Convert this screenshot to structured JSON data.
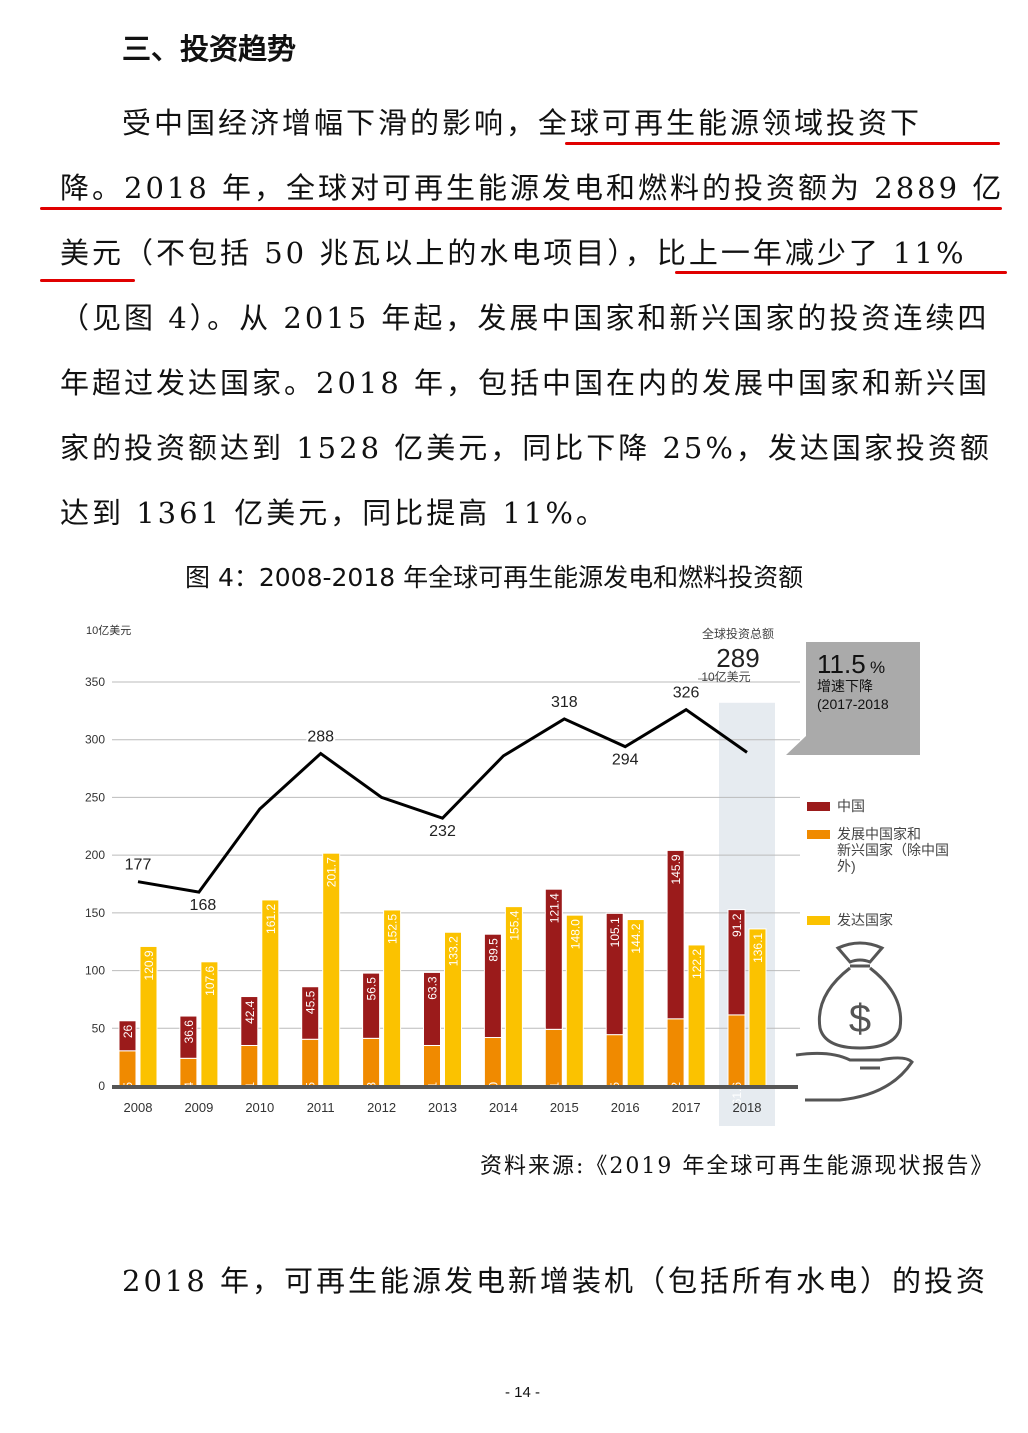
{
  "heading": "三、投资趋势",
  "paragraph1": [
    "受中国经济增幅下滑的影响，全球可再生能源领域投资下",
    "降。2018 年，全球对可再生能源发电和燃料的投资额为 2889 亿",
    "美元（不包括 50 兆瓦以上的水电项目），比上一年减少了 11%",
    "（见图 4）。从 2015 年起，发展中国家和新兴国家的投资连续四",
    "年超过发达国家。2018 年，包括中国在内的发展中国家和新兴国",
    "家的投资额达到 1528 亿美元，同比下降 25%，发达国家投资额",
    "达到 1361 亿美元，同比提高 11%。"
  ],
  "underline_color": "#e00000",
  "figure_caption": "图 4：2008-2018 年全球可再生能源发电和燃料投资额",
  "source": "资料来源:《2019 年全球可再生能源现状报告》",
  "paragraph2_start": "2018 年，可再生能源发电新增装机（包括所有水电）的投资",
  "page_number": "- 14 -",
  "chart_data": {
    "type": "bar",
    "ylabel": "10亿美元",
    "ylim": [
      0,
      350
    ],
    "yticks": [
      0,
      50,
      100,
      150,
      200,
      250,
      300,
      350
    ],
    "grid": true,
    "categories": [
      "2008",
      "2009",
      "2010",
      "2011",
      "2012",
      "2013",
      "2014",
      "2015",
      "2016",
      "2017",
      "2018"
    ],
    "series": [
      {
        "name": "中国",
        "color": "#9b1b1b",
        "stack": "a",
        "values": [
          26,
          36.6,
          42.4,
          45.5,
          56.5,
          63.3,
          89.5,
          121.4,
          105.1,
          145.9,
          91.2
        ],
        "labels": [
          "26",
          "36.6",
          "42.4",
          "45.5",
          "56.5",
          "63.3",
          "89.5",
          "121.4",
          "105.1",
          "145.9",
          "91.2"
        ]
      },
      {
        "name": "发展中国家和新兴国家（除中国外）",
        "color": "#f08a00",
        "stack": "a",
        "values": [
          30.5,
          24,
          35.1,
          40.5,
          41.3,
          35.1,
          42.0,
          49.1,
          44.5,
          58.2,
          61.6
        ],
        "labels": [
          "30.5",
          "24",
          "35.1",
          "40.5",
          "41.3",
          "35.1",
          "42.0",
          "49.1",
          "44.5",
          "58.2",
          "61.6"
        ]
      },
      {
        "name": "发达国家",
        "color": "#fbc200",
        "stack": "b",
        "values": [
          120.9,
          107.6,
          161.2,
          201.7,
          152.5,
          133.2,
          155.4,
          148.0,
          144.2,
          122.2,
          136.1
        ],
        "labels": [
          "120.9",
          "107.6",
          "161.2",
          "201.7",
          "152.5",
          "133.2",
          "155.4",
          "148.0",
          "144.2",
          "122.2",
          "136.1"
        ]
      }
    ],
    "total_line": {
      "values": [
        177,
        168,
        240,
        288,
        250,
        232,
        286,
        318,
        294,
        326,
        289
      ],
      "labels": [
        "177",
        "168",
        "",
        "288",
        "",
        "232",
        "",
        "318",
        "294",
        "326",
        ""
      ]
    },
    "legend": [
      "中国",
      "发展中国家和新兴国家（除中国外）",
      "发达国家"
    ],
    "legend_lines": [
      [
        "中国"
      ],
      [
        "发展中国家和",
        "新兴国家（除中国",
        "外)"
      ],
      [
        "发达国家"
      ]
    ],
    "legend_position": "right",
    "highlight_category": "2018",
    "total_annotation": {
      "title": "全球投资总额",
      "value": "289",
      "unit": "10亿美元"
    },
    "callout": {
      "value": "11.5",
      "unit": "%",
      "text": "增速下降",
      "period": "(2017-2018"
    },
    "icon": "money-bag-hand-icon"
  }
}
